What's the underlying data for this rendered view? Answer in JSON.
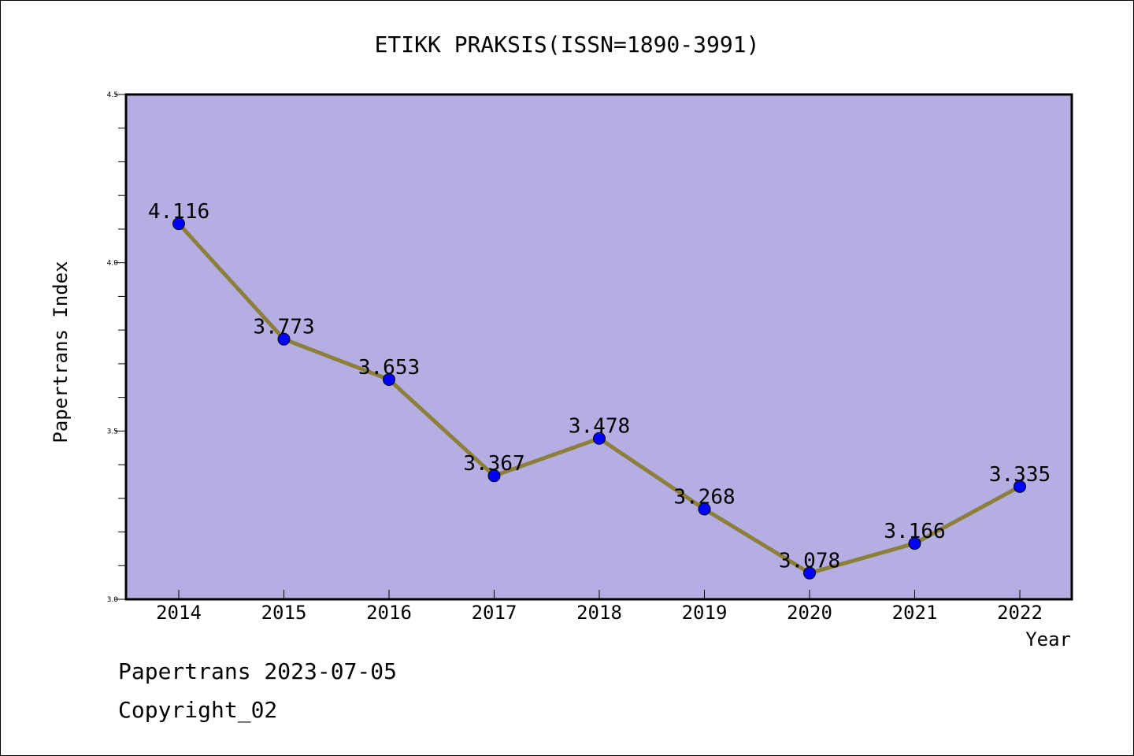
{
  "chart_data": {
    "type": "line",
    "title": "ETIKK PRAKSIS(ISSN=1890-3991)",
    "xlabel": "Year",
    "ylabel": "Papertrans Index",
    "categories": [
      "2014",
      "2015",
      "2016",
      "2017",
      "2018",
      "2019",
      "2020",
      "2021",
      "2022"
    ],
    "series": [
      {
        "values": [
          4.116,
          3.773,
          3.653,
          3.367,
          3.478,
          3.268,
          3.078,
          3.166,
          3.335
        ],
        "labels": [
          "4.116",
          "3.773",
          "3.653",
          "3.367",
          "3.478",
          "3.268",
          "3.078",
          "3.166",
          "3.335"
        ]
      }
    ],
    "ylim": [
      3.0,
      4.5
    ],
    "yticks": [
      "3.0",
      "3.5",
      "4.0",
      "4.5"
    ],
    "grid": false,
    "colors": {
      "plot_background": "#b4aee2",
      "line": "#8c7f3a",
      "marker": "#0000ff"
    }
  },
  "footer": {
    "line1": "Papertrans 2023-07-05",
    "line2": "Copyright_02"
  }
}
